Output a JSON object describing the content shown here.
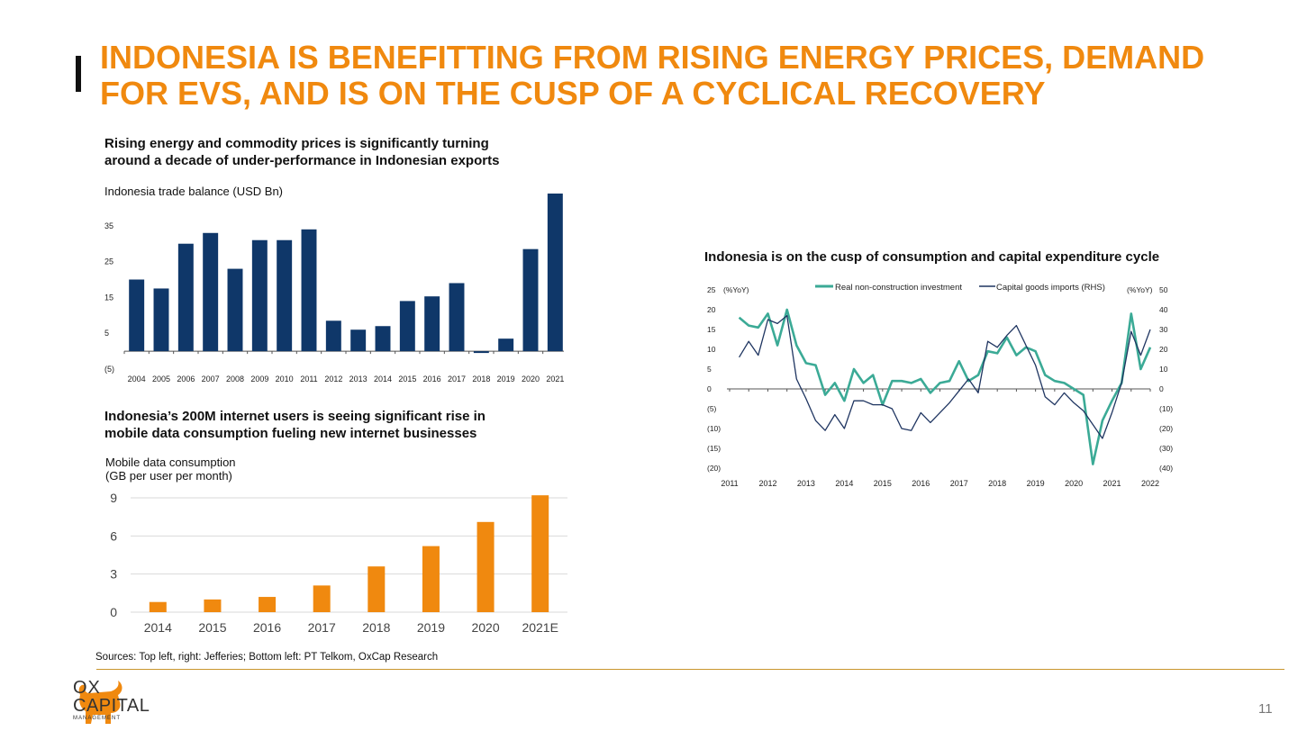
{
  "title": {
    "line1": "INDONESIA IS BENEFITTING FROM RISING ENERGY PRICES, DEMAND",
    "line2": "FOR EVS, AND IS ON THE CUSP OF A CYCLICAL RECOVERY"
  },
  "colors": {
    "accent": "#F0890F",
    "navy": "#0F3769",
    "teal": "#3BAA96",
    "darknavy": "#1F3561"
  },
  "chart_data": [
    {
      "type": "bar",
      "heading_line1": "Rising energy and commodity prices is significantly turning",
      "heading_line2": "around a decade of under-performance in Indonesian exports",
      "ylabel": "Indonesia trade balance (USD Bn)",
      "categories": [
        "2004",
        "2005",
        "2006",
        "2007",
        "2008",
        "2009",
        "2010",
        "2011",
        "2012",
        "2013",
        "2014",
        "2015",
        "2016",
        "2017",
        "2018",
        "2019",
        "2020",
        "2021"
      ],
      "values": [
        20,
        17.5,
        30,
        33,
        23,
        31,
        31,
        34,
        8.5,
        6,
        7,
        14,
        15.3,
        19,
        -0.5,
        3.5,
        28.5,
        44
      ],
      "yticks": [
        "35",
        "25",
        "15",
        "5",
        "(5)"
      ],
      "ytick_values": [
        35,
        25,
        15,
        5,
        -5
      ],
      "ylim": [
        -5,
        44
      ],
      "color": "#0F3769"
    },
    {
      "type": "bar",
      "heading_line1": "Indonesia’s 200M internet users is seeing significant rise in",
      "heading_line2": "mobile data consumption fueling new internet businesses",
      "ylabel_line1": "Mobile data consumption",
      "ylabel_line2": "(GB per user per month)",
      "categories": [
        "2014",
        "2015",
        "2016",
        "2017",
        "2018",
        "2019",
        "2020",
        "2021E"
      ],
      "values": [
        0.8,
        1.0,
        1.2,
        2.1,
        3.6,
        5.2,
        7.1,
        9.2
      ],
      "yticks": [
        "9",
        "6",
        "3",
        "0"
      ],
      "ytick_values": [
        9,
        6,
        3,
        0
      ],
      "ylim": [
        0,
        9
      ],
      "grid": true,
      "color": "#F0890F"
    },
    {
      "type": "line",
      "heading": "Indonesia is on the cusp of consumption and capital expenditure cycle",
      "left_unit": "(%YoY)",
      "right_unit": "(%YoY)",
      "left_ticks": [
        "25",
        "20",
        "15",
        "10",
        "5",
        "0",
        "(5)",
        "(10)",
        "(15)",
        "(20)"
      ],
      "left_tick_values": [
        25,
        20,
        15,
        10,
        5,
        0,
        -5,
        -10,
        -15,
        -20
      ],
      "right_ticks": [
        "50",
        "40",
        "30",
        "20",
        "10",
        "0",
        "(10)",
        "(20)",
        "(30)",
        "(40)"
      ],
      "right_tick_values": [
        50,
        40,
        30,
        20,
        10,
        0,
        -10,
        -20,
        -30,
        -40
      ],
      "x_labels": [
        "2011",
        "2012",
        "2013",
        "2014",
        "2015",
        "2016",
        "2017",
        "2018",
        "2019",
        "2020",
        "2021",
        "2022"
      ],
      "left_ylim": [
        -20,
        25
      ],
      "right_ylim": [
        -40,
        50
      ],
      "x_range": [
        2011,
        2022
      ],
      "series": [
        {
          "name": "Real non-construction investment",
          "axis": "left",
          "color": "#3BAA96",
          "x": [
            2011.25,
            2011.5,
            2011.75,
            2012.0,
            2012.25,
            2012.5,
            2012.75,
            2013.0,
            2013.25,
            2013.5,
            2013.75,
            2014.0,
            2014.25,
            2014.5,
            2014.75,
            2015.0,
            2015.25,
            2015.5,
            2015.75,
            2016.0,
            2016.25,
            2016.5,
            2016.75,
            2017.0,
            2017.25,
            2017.5,
            2017.75,
            2018.0,
            2018.25,
            2018.5,
            2018.75,
            2019.0,
            2019.25,
            2019.5,
            2019.75,
            2020.0,
            2020.25,
            2020.5,
            2020.75,
            2021.0,
            2021.25,
            2021.5,
            2021.75,
            2022.0
          ],
          "y": [
            18,
            16,
            15.5,
            19,
            11,
            20,
            11,
            6.5,
            6,
            -1.5,
            1.5,
            -3,
            5,
            1.5,
            3.5,
            -4,
            2,
            2,
            1.5,
            2.5,
            -1,
            1.5,
            2,
            7,
            2,
            3.5,
            9.5,
            9,
            13,
            8.5,
            10.5,
            9.5,
            3.5,
            2,
            1.5,
            0,
            -1.5,
            -19,
            -8,
            -3,
            1.5,
            19,
            5,
            10.5
          ]
        },
        {
          "name": "Capital goods imports (RHS)",
          "axis": "right",
          "color": "#1F3561",
          "x": [
            2011.25,
            2011.5,
            2011.75,
            2012.0,
            2012.25,
            2012.5,
            2012.75,
            2013.0,
            2013.25,
            2013.5,
            2013.75,
            2014.0,
            2014.25,
            2014.5,
            2014.75,
            2015.0,
            2015.25,
            2015.5,
            2015.75,
            2016.0,
            2016.25,
            2016.5,
            2016.75,
            2017.0,
            2017.25,
            2017.5,
            2017.75,
            2018.0,
            2018.25,
            2018.5,
            2018.75,
            2019.0,
            2019.25,
            2019.5,
            2019.75,
            2020.0,
            2020.25,
            2020.5,
            2020.75,
            2021.0,
            2021.25,
            2021.5,
            2021.75,
            2022.0
          ],
          "y": [
            16,
            24,
            17,
            35,
            33,
            37,
            5,
            -5,
            -16,
            -21,
            -13,
            -20,
            -6,
            -6,
            -8,
            -8,
            -10,
            -20,
            -21,
            -12,
            -17,
            -12,
            -7,
            -1,
            5,
            -2,
            24,
            21,
            27,
            32,
            22,
            12,
            -4,
            -8,
            -2,
            -7,
            -11,
            -18,
            -25,
            -12,
            3,
            29,
            17,
            30
          ]
        }
      ]
    }
  ],
  "sources": "Sources: Top left, right: Jefferies; Bottom left: PT Telkom, OxCap Research",
  "logo": {
    "line1": "OX",
    "line2": "CAPITAL",
    "line3": "MANAGEMENT"
  },
  "page_number": "11"
}
